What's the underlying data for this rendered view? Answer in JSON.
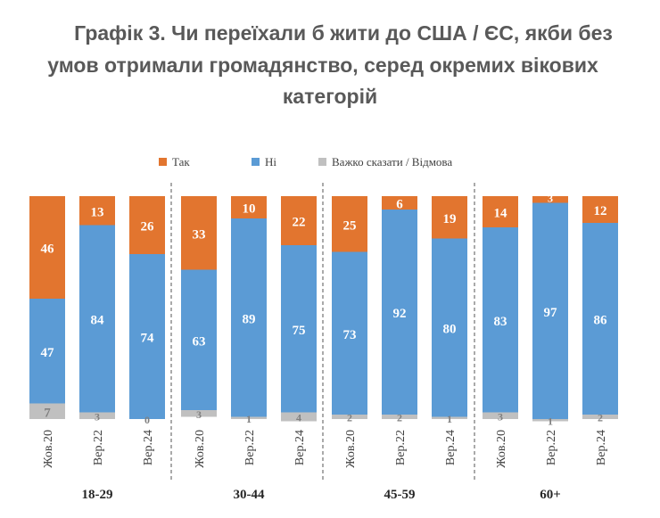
{
  "title_lines": [
    "Графік 3. Чи переїхали б жити до США / ЄС, якби без",
    "умов отримали громадянство, серед окремих вікових",
    "категорій"
  ],
  "chart_data": {
    "type": "bar",
    "stacked": true,
    "orientation": "vertical",
    "groups": [
      {
        "label": "18-29",
        "categories": [
          "Жов.20",
          "Вер.22",
          "Вер.24"
        ]
      },
      {
        "label": "30-44",
        "categories": [
          "Жов.20",
          "Вер.22",
          "Вер.24"
        ]
      },
      {
        "label": "45-59",
        "categories": [
          "Жов.20",
          "Вер.22",
          "Вер.24"
        ]
      },
      {
        "label": "60+",
        "categories": [
          "Жов.20",
          "Вер.22",
          "Вер.24"
        ]
      }
    ],
    "series": [
      {
        "name": "Так",
        "color": "#E2752F",
        "values": [
          46,
          13,
          26,
          33,
          10,
          22,
          25,
          6,
          19,
          14,
          3,
          12
        ]
      },
      {
        "name": "Ні",
        "color": "#5B9BD5",
        "values": [
          47,
          84,
          74,
          63,
          89,
          75,
          73,
          92,
          80,
          83,
          97,
          86
        ]
      },
      {
        "name": "Важко сказати / Відмова",
        "color": "#C0C0C0",
        "values": [
          7,
          3,
          0,
          3,
          1,
          4,
          2,
          2,
          1,
          3,
          1,
          2
        ]
      }
    ],
    "ylim": [
      0,
      100
    ],
    "legend": "top",
    "grid": false
  }
}
